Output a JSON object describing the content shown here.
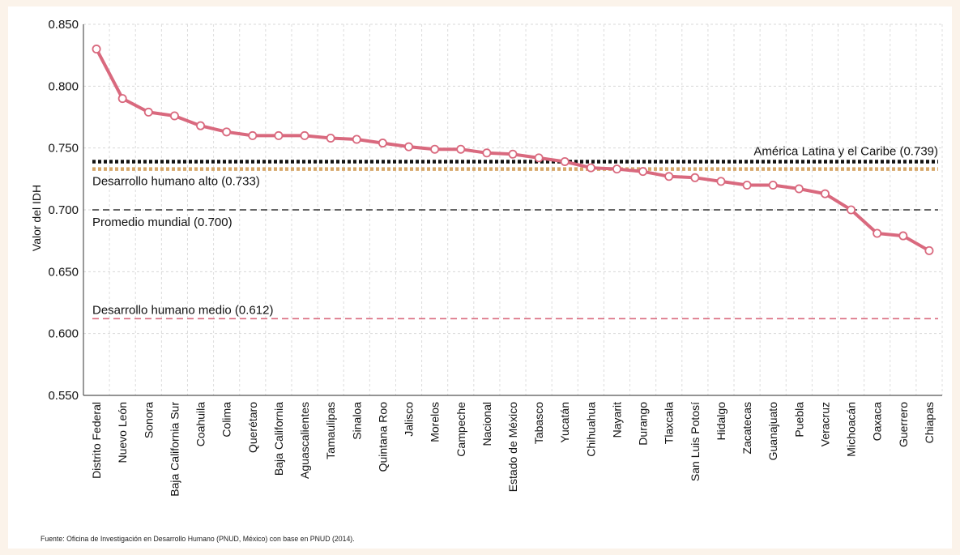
{
  "chart_data": {
    "type": "line",
    "ylabel": "Valor del IDH",
    "ylim": [
      0.55,
      0.85
    ],
    "yticks": [
      "0.850",
      "0.800",
      "0.750",
      "0.700",
      "0.650",
      "0.600",
      "0.550"
    ],
    "grid": true,
    "categories": [
      "Distrito Federal",
      "Nuevo León",
      "Sonora",
      "Baja California Sur",
      "Coahuila",
      "Colima",
      "Querétaro",
      "Baja California",
      "Aguascalientes",
      "Tamaulipas",
      "Sinaloa",
      "Quintana Roo",
      "Jalisco",
      "Morelos",
      "Campeche",
      "Nacional",
      "Estado de México",
      "Tabasco",
      "Yucatán",
      "Chihuahua",
      "Nayarit",
      "Durango",
      "Tlaxcala",
      "San Luis Potosí",
      "Hidalgo",
      "Zacatecas",
      "Guanajuato",
      "Puebla",
      "Veracruz",
      "Michoacán",
      "Oaxaca",
      "Guerrero",
      "Chiapas"
    ],
    "values": [
      0.83,
      0.79,
      0.779,
      0.776,
      0.768,
      0.763,
      0.76,
      0.76,
      0.76,
      0.758,
      0.757,
      0.754,
      0.751,
      0.749,
      0.749,
      0.746,
      0.745,
      0.742,
      0.739,
      0.734,
      0.733,
      0.731,
      0.727,
      0.726,
      0.723,
      0.72,
      0.72,
      0.717,
      0.713,
      0.7,
      0.681,
      0.679,
      0.667
    ],
    "line_color": "#d9697e",
    "reference_lines": [
      {
        "label": "América Latina y el Caribe (0.739)",
        "value": 0.739,
        "color": "#111111",
        "style": "dotted-heavy"
      },
      {
        "label": "Desarrollo humano alto (0.733)",
        "value": 0.733,
        "color": "#d6a86a",
        "style": "dotted-heavy"
      },
      {
        "label": "Promedio mundial (0.700)",
        "value": 0.7,
        "color": "#333333",
        "style": "dashed"
      },
      {
        "label": "Desarrollo humano medio (0.612)",
        "value": 0.612,
        "color": "#d9697e",
        "style": "dashed"
      }
    ]
  },
  "footer": {
    "source": "Fuente:  Oficina de Investigación en Desarrollo Humano (PNUD, México) con base en PNUD (2014)."
  }
}
